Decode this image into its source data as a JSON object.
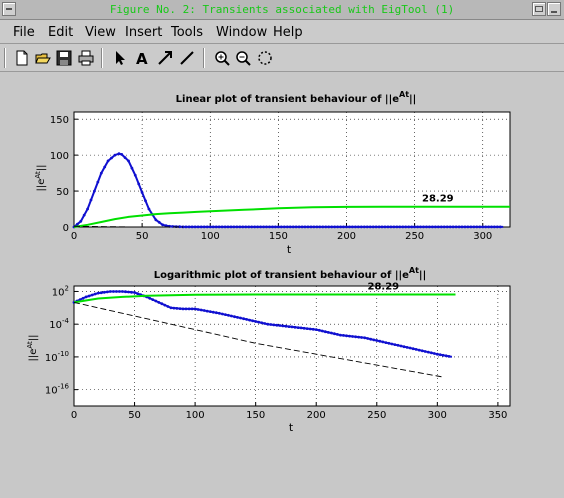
{
  "window": {
    "title": "Figure No. 2: Transients associated with EigTool (1)"
  },
  "menu": [
    "File",
    "Edit",
    "View",
    "Insert",
    "Tools",
    "Window",
    "Help"
  ],
  "toolbar": [
    "new-file-icon",
    "open-folder-icon",
    "save-icon",
    "print-icon",
    "arrow-pointer-icon",
    "insert-text-icon",
    "insert-arrow-icon",
    "insert-line-icon",
    "zoom-in-icon",
    "zoom-out-icon",
    "rotate-icon"
  ],
  "chart_data": [
    {
      "type": "line",
      "title": "Linear plot of transient behaviour of ||e",
      "title_sup": "At",
      "title_end": "||",
      "xlabel": "t",
      "ylabel": "||e",
      "ylabel_sup": "At",
      "ylabel_end": "||",
      "xlim": [
        0,
        320
      ],
      "ylim": [
        0,
        160
      ],
      "xticks": [
        0,
        50,
        100,
        150,
        200,
        250,
        300
      ],
      "yticks": [
        0,
        50,
        100,
        150
      ],
      "grid": true,
      "annotation": "28.29",
      "series": [
        {
          "color": "#1010d0",
          "style": "line-markers",
          "x": [
            0,
            5,
            10,
            15,
            20,
            25,
            30,
            33,
            35,
            40,
            45,
            50,
            55,
            60,
            65,
            70,
            75,
            80,
            100,
            150,
            200,
            250,
            300,
            315
          ],
          "y": [
            0,
            8,
            25,
            50,
            75,
            92,
            100,
            102,
            101,
            92,
            72,
            48,
            25,
            10,
            3,
            1,
            0.5,
            0.2,
            0.1,
            0.1,
            0.1,
            0.1,
            0.1,
            0.1
          ]
        },
        {
          "color": "#00e000",
          "style": "line",
          "x": [
            0,
            10,
            20,
            30,
            40,
            50,
            60,
            70,
            80,
            90,
            100,
            125,
            150,
            175,
            200,
            250,
            300,
            320
          ],
          "y": [
            0,
            3,
            7,
            11,
            14,
            16,
            18,
            19,
            20,
            21,
            22,
            24,
            26,
            27.5,
            28,
            28.3,
            28.3,
            28.29
          ]
        },
        {
          "color": "#000000",
          "style": "dash",
          "x": [
            0,
            20,
            40,
            60,
            80
          ],
          "y": [
            1,
            0.5,
            0.2,
            0.05,
            0
          ]
        }
      ]
    },
    {
      "type": "line",
      "title": "Logarithmic plot of transient behaviour of ||e",
      "title_sup": "At",
      "title_end": "||",
      "xlabel": "t",
      "ylabel": "||e",
      "ylabel_sup": "At",
      "ylabel_end": "||",
      "yscale": "log",
      "xlim": [
        0,
        360
      ],
      "ylog10lim": [
        -19,
        3
      ],
      "xticks": [
        0,
        50,
        100,
        150,
        200,
        250,
        300,
        350
      ],
      "ytick_exponents": [
        2,
        -4,
        -10,
        -16
      ],
      "grid": true,
      "annotation": "28.29",
      "series": [
        {
          "color": "#1010d0",
          "style": "line-markers",
          "x": [
            0,
            10,
            20,
            30,
            35,
            40,
            50,
            60,
            70,
            80,
            90,
            100,
            120,
            140,
            160,
            180,
            200,
            220,
            240,
            260,
            280,
            300,
            312
          ],
          "ylog10": [
            0,
            1,
            1.7,
            2,
            2,
            2,
            1.8,
            1,
            0,
            -1,
            -1.2,
            -1.2,
            -2,
            -3,
            -4,
            -4.5,
            -5,
            -6,
            -6.5,
            -7.5,
            -8.5,
            -9.5,
            -10
          ]
        },
        {
          "color": "#00e000",
          "style": "line",
          "x": [
            0,
            20,
            40,
            60,
            80,
            100,
            150,
            200,
            250,
            300,
            315
          ],
          "ylog10": [
            0,
            0.7,
            1,
            1.2,
            1.3,
            1.4,
            1.45,
            1.45,
            1.45,
            1.45,
            1.45
          ]
        },
        {
          "color": "#000000",
          "style": "dash",
          "x": [
            0,
            50,
            100,
            150,
            200,
            250,
            300,
            305
          ],
          "ylog10": [
            0,
            -2.5,
            -5,
            -7.5,
            -9.5,
            -11.5,
            -13.5,
            -13.7
          ]
        }
      ]
    }
  ]
}
